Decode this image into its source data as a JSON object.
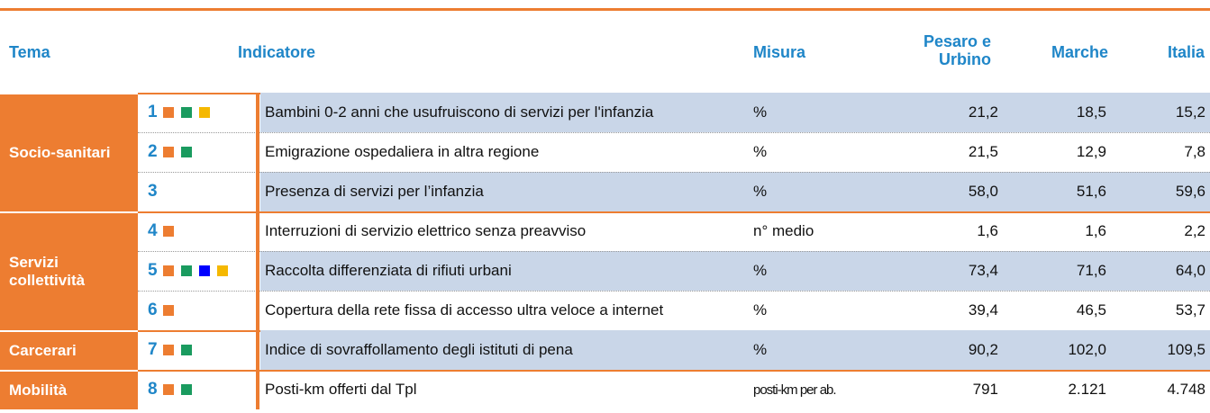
{
  "header": {
    "tema": "Tema",
    "indicatore": "Indicatore",
    "misura": "Misura",
    "pesaro": "Pesaro e Urbino",
    "marche": "Marche",
    "italia": "Italia"
  },
  "groups": [
    {
      "tema": "Socio-sanitari",
      "rows": [
        {
          "n": "1",
          "markers": [
            "#ed7d31",
            "#1a9b5f",
            "#f5b800"
          ],
          "indicatore": "Bambini 0-2 anni che usufruiscono di servizi per l'infanzia",
          "misura": "%",
          "values": [
            "21,2",
            "18,5",
            "15,2"
          ]
        },
        {
          "n": "2",
          "markers": [
            "#ed7d31",
            "#1a9b5f"
          ],
          "indicatore": "Emigrazione ospedaliera in altra regione",
          "misura": "%",
          "values": [
            "21,5",
            "12,9",
            "7,8"
          ]
        },
        {
          "n": "3",
          "markers": [],
          "indicatore": "Presenza di servizi per l’infanzia",
          "misura": "%",
          "values": [
            "58,0",
            "51,6",
            "59,6"
          ]
        }
      ]
    },
    {
      "tema": "Servizi collettività",
      "rows": [
        {
          "n": "4",
          "markers": [
            "#ed7d31"
          ],
          "indicatore": "Interruzioni di servizio elettrico senza preavviso",
          "misura": "n° medio",
          "values": [
            "1,6",
            "1,6",
            "2,2"
          ]
        },
        {
          "n": "5",
          "markers": [
            "#ed7d31",
            "#1a9b5f",
            "#0000ff",
            "#f5b800"
          ],
          "indicatore": "Raccolta differenziata di rifiuti urbani",
          "misura": "%",
          "values": [
            "73,4",
            "71,6",
            "64,0"
          ]
        },
        {
          "n": "6",
          "markers": [
            "#ed7d31"
          ],
          "indicatore": "Copertura della rete fissa di accesso ultra veloce a internet",
          "misura": "%",
          "values": [
            "39,4",
            "46,5",
            "53,7"
          ]
        }
      ]
    },
    {
      "tema": "Carcerari",
      "rows": [
        {
          "n": "7",
          "markers": [
            "#ed7d31",
            "#1a9b5f"
          ],
          "indicatore": "Indice di sovraffollamento degli istituti di pena",
          "misura": "%",
          "values": [
            "90,2",
            "102,0",
            "109,5"
          ]
        }
      ]
    },
    {
      "tema": "Mobilità",
      "rows": [
        {
          "n": "8",
          "markers": [
            "#ed7d31",
            "#1a9b5f"
          ],
          "indicatore": "Posti-km offerti dal Tpl",
          "misura": "posti-km per ab.",
          "values": [
            "791",
            "2.121",
            "4.748"
          ]
        }
      ]
    }
  ]
}
